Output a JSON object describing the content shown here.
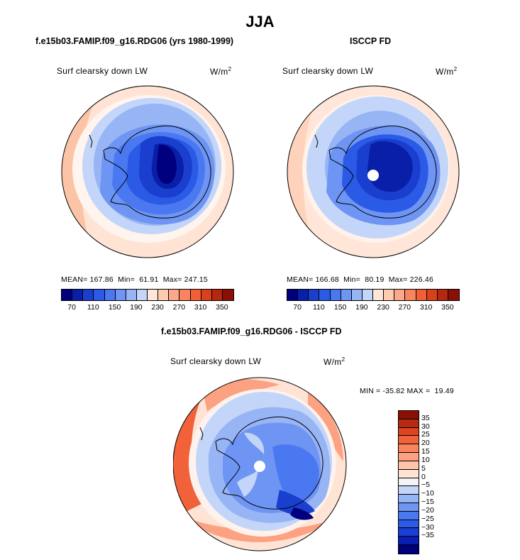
{
  "title": "JJA",
  "panels": {
    "model": {
      "title": "f.e15b03.FAMIP.f09_g16.RDG06 (yrs 1980-1999)",
      "variable": "Surf clearsky down LW",
      "units": "W/m",
      "units_sup": "2",
      "stats": "MEAN= 167.86  Min=  61.91  Max= 247.15"
    },
    "obs": {
      "title": "ISCCP FD",
      "variable": "Surf clearsky down LW",
      "units": "W/m",
      "units_sup": "2",
      "stats": "MEAN= 166.68  Min=  80.19  Max= 226.46"
    },
    "diff": {
      "title": "f.e15b03.FAMIP.f09_g16.RDG06 - ISCCP FD",
      "variable": "Surf clearsky down LW",
      "units": "W/m",
      "units_sup": "2",
      "stats": "MIN = -35.82 MAX =  19.49"
    }
  },
  "colorbar_abs": {
    "colors": [
      "#00007f",
      "#0a1fa8",
      "#1a3fcf",
      "#2a5ae6",
      "#4a78f0",
      "#6e95f3",
      "#97b4f5",
      "#c3d6f9",
      "#ffe6d8",
      "#ffcbb0",
      "#fca88a",
      "#f98460",
      "#f25f36",
      "#d9401c",
      "#b52710",
      "#8c0f06"
    ],
    "tick_labels": [
      "70",
      "110",
      "150",
      "190",
      "230",
      "270",
      "310",
      "350"
    ]
  },
  "colorbar_diff": {
    "colors": [
      "#00007f",
      "#0a1fb0",
      "#1a3fd4",
      "#2d5ae6",
      "#4a78f0",
      "#6e95f3",
      "#97b4f5",
      "#c3d6f9",
      "#f4f4f8",
      "#ffe3d4",
      "#ffc5a8",
      "#fca282",
      "#f98460",
      "#f2623a",
      "#de4420",
      "#b82a10",
      "#8c0f06"
    ],
    "tick_labels": [
      "35",
      "30",
      "25",
      "20",
      "15",
      "10",
      "5",
      "0",
      "−5",
      "−10",
      "−15",
      "−20",
      "−25",
      "−30",
      "−35"
    ]
  }
}
